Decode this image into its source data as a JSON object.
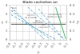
{
  "chart_data": {
    "type": "line",
    "title": "Blade cavitation on",
    "xlabel": "J₀",
    "ylabel": "σ",
    "y2label": "Kₚ",
    "xlim": [
      -0.8,
      0.1
    ],
    "ylim": [
      0,
      4
    ],
    "y2lim": [
      0,
      0.4
    ],
    "xticks": [
      -0.8,
      -0.7,
      -0.6,
      -0.5,
      -0.4,
      -0.3,
      -0.2,
      -0.1,
      0,
      0.1
    ],
    "yticks": [
      0,
      1,
      2,
      3,
      4
    ],
    "y2ticks": [
      0,
      0.1,
      0.2,
      0.3,
      0.4
    ],
    "grid": true,
    "series": [
      {
        "color": "#66aacc",
        "line_style": "dashed",
        "x": [
          -0.78,
          -0.26
        ],
        "values": [
          3.8,
          0.05
        ]
      },
      {
        "color": "#66aacc",
        "line_style": "dashed",
        "x": [
          -0.78,
          -0.16
        ],
        "values": [
          3.4,
          0.05
        ]
      },
      {
        "color": "#66aacc",
        "line_style": "dashed",
        "x": [
          -0.78,
          -0.08
        ],
        "values": [
          2.9,
          0.05
        ]
      },
      {
        "color": "#66aacc",
        "line_style": "dashed",
        "x": [
          -0.52,
          0.05
        ],
        "values": [
          3.8,
          0.05
        ]
      },
      {
        "color": "#66aacc",
        "line_style": "dashed",
        "x": [
          -0.35,
          0.05
        ],
        "values": [
          3.6,
          0.05
        ]
      },
      {
        "color": "#44bb66",
        "line_style": "solid",
        "x": [
          -0.08,
          0.08
        ],
        "values": [
          3.8,
          0.1
        ]
      },
      {
        "color": "#555555",
        "line_style": "solid",
        "x": [
          -0.78,
          0.08
        ],
        "values": [
          1.8,
          1.8
        ]
      }
    ],
    "annotations": [
      {
        "text": "Suction\ntip of blades",
        "x": -0.47,
        "y": 2.7
      },
      {
        "text": "Back\ncavitation",
        "x": -0.36,
        "y": 2.1
      },
      {
        "text": "Hub\ncavitation",
        "x": -0.27,
        "y": 1.6
      },
      {
        "text": "Cavitation by\nblades on face",
        "x": 0.02,
        "y": 2.8
      },
      {
        "text": "Back\ncut",
        "x": -0.77,
        "y": 3.55
      }
    ]
  }
}
